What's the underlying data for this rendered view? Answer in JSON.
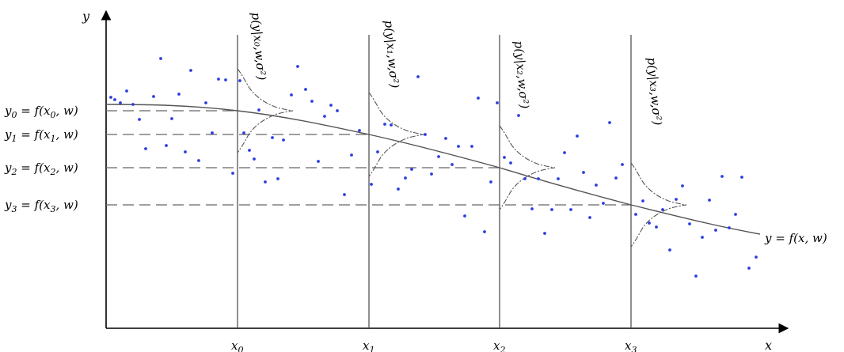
{
  "axes": {
    "x_label": "x",
    "y_label": "y"
  },
  "curve_label": "y = f(x, w)",
  "verticals": [
    {
      "x_label": "x",
      "x_sub": "0",
      "dist_label": "p(y|x₀,w,σ²)"
    },
    {
      "x_label": "x",
      "x_sub": "1",
      "dist_label": "p(y|x₁,w,σ²)"
    },
    {
      "x_label": "x",
      "x_sub": "2",
      "dist_label": "p(y|x₂,w,σ²)"
    },
    {
      "x_label": "x",
      "x_sub": "3",
      "dist_label": "p(y|x₃,w,σ²)"
    }
  ],
  "level_labels": [
    {
      "lhs": "y",
      "sub": "0",
      "rhs": " = f(x",
      "rhs_sub": "0",
      "tail": ", w)"
    },
    {
      "lhs": "y",
      "sub": "1",
      "rhs": " = f(x",
      "rhs_sub": "1",
      "tail": ", w)"
    },
    {
      "lhs": "y",
      "sub": "2",
      "rhs": " =  f(x",
      "rhs_sub": "2",
      "tail": ", w)"
    },
    {
      "lhs": "y",
      "sub": "3",
      "rhs": " = f(x",
      "rhs_sub": "3",
      "tail": ", w)"
    }
  ],
  "colors": {
    "points": "#2b3fe0",
    "lines": "#444444",
    "axes": "#000000"
  }
}
